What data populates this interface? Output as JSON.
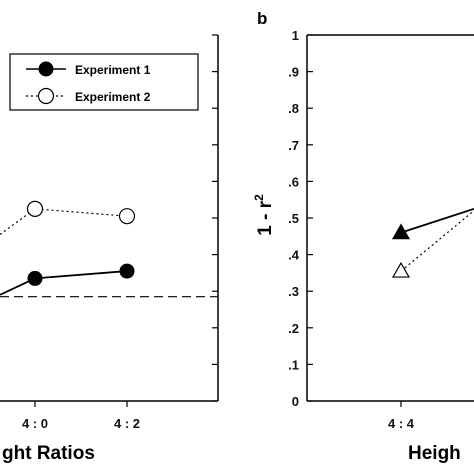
{
  "chart_data": [
    {
      "type": "line",
      "xlabel": "ght Ratios",
      "categories": [
        "4 : 0",
        "4 : 2"
      ],
      "series": [
        {
          "name": "Experiment 1",
          "marker": "filled-circle",
          "line": "solid",
          "values": [
            0.335,
            0.355
          ]
        },
        {
          "name": "Experiment 2",
          "marker": "open-circle",
          "line": "dotted",
          "values": [
            0.525,
            0.505
          ]
        }
      ],
      "reference_line": 0.285,
      "legend_placement": "top-right"
    },
    {
      "type": "line",
      "panel_label": "b",
      "xlabel": "Heigh",
      "ylabel": "1 - r",
      "ylabel_superscript": "2",
      "ylim": [
        0,
        1
      ],
      "yticks": [
        "0",
        ".1",
        ".2",
        ".3",
        ".4",
        ".5",
        ".6",
        ".7",
        ".8",
        ".9",
        "1"
      ],
      "categories": [
        "4 : 4"
      ],
      "series": [
        {
          "marker": "filled-triangle",
          "line": "solid",
          "values": [
            0.46
          ]
        },
        {
          "marker": "open-triangle",
          "line": "dotted",
          "values": [
            0.355
          ]
        }
      ]
    }
  ],
  "colors": {
    "ink": "#000000",
    "background": "#ffffff"
  }
}
